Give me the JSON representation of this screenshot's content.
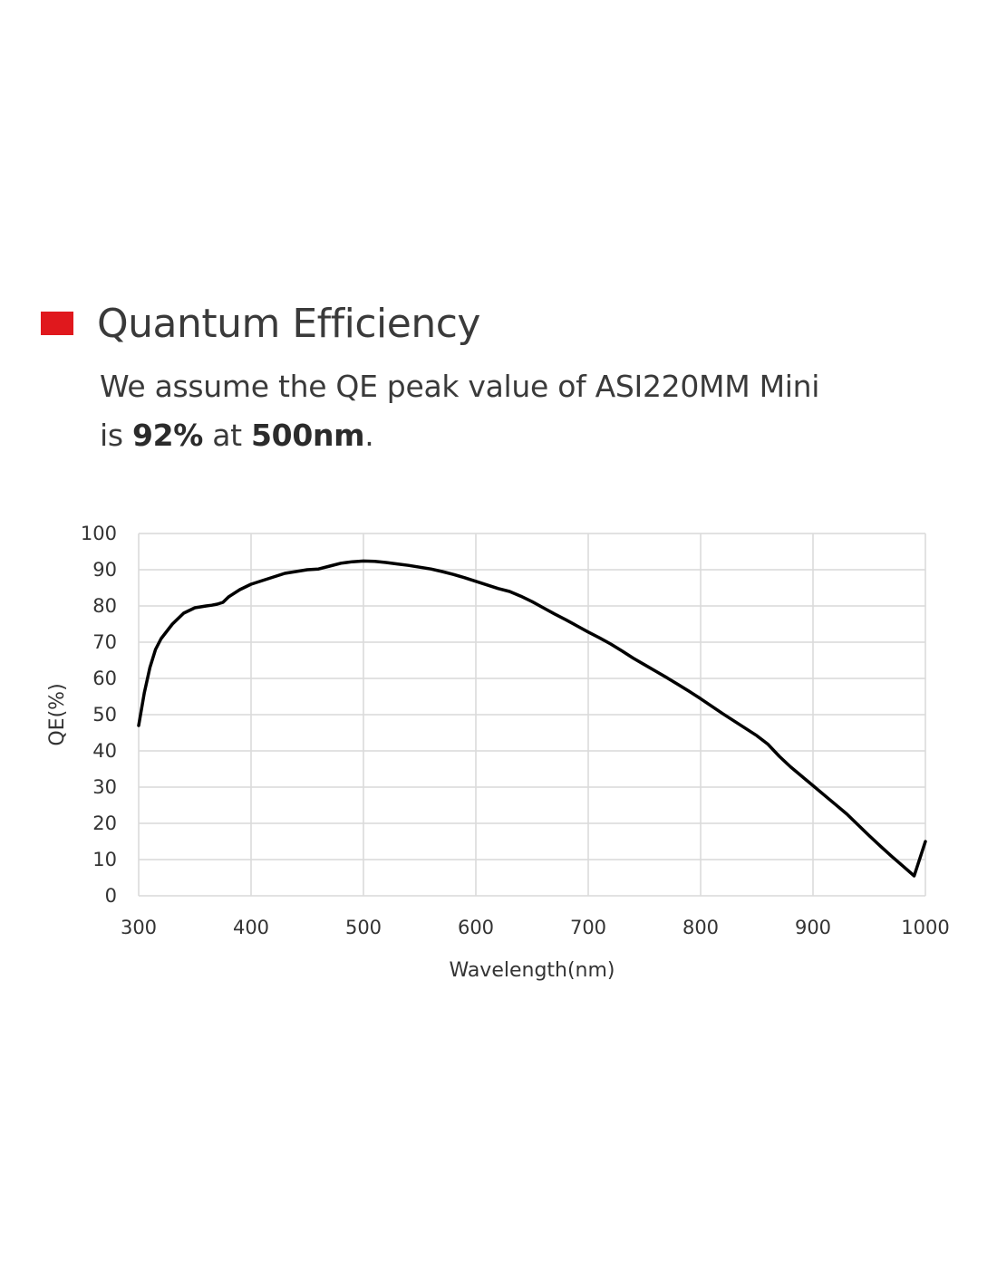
{
  "header": {
    "title": "Quantum Efficiency",
    "accent_color": "#e0181d"
  },
  "description": {
    "line1": "We assume the QE peak value of ASI220MM Mini",
    "line2_prefix": "is ",
    "peak_value": "92%",
    "line2_middle": " at ",
    "peak_wavelength": "500nm",
    "line2_suffix": "."
  },
  "chart_data": {
    "type": "line",
    "xlabel": "Wavelength(nm)",
    "ylabel": "QE(%)",
    "xlim": [
      300,
      1000
    ],
    "ylim": [
      0,
      100
    ],
    "xticks": [
      300,
      400,
      500,
      600,
      700,
      800,
      900,
      1000
    ],
    "yticks": [
      0,
      10,
      20,
      30,
      40,
      50,
      60,
      70,
      80,
      90,
      100
    ],
    "grid": true,
    "line_color": "#000000",
    "grid_color": "#d9d9d9",
    "series": [
      {
        "x": [
          300,
          305,
          310,
          315,
          320,
          330,
          340,
          350,
          360,
          365,
          370,
          375,
          380,
          390,
          400,
          410,
          420,
          430,
          440,
          450,
          460,
          470,
          480,
          490,
          500,
          510,
          520,
          530,
          540,
          550,
          560,
          570,
          580,
          590,
          600,
          610,
          620,
          630,
          640,
          650,
          660,
          670,
          680,
          690,
          700,
          710,
          720,
          730,
          740,
          750,
          760,
          770,
          780,
          790,
          800,
          810,
          820,
          830,
          840,
          850,
          860,
          870,
          880,
          890,
          900,
          910,
          920,
          930,
          940,
          950,
          960,
          970,
          980,
          990,
          1000
        ],
        "y": [
          47,
          56,
          63,
          68,
          71,
          75,
          78,
          79.5,
          80,
          80.2,
          80.5,
          81,
          82.5,
          84.5,
          86,
          87,
          88,
          89,
          89.5,
          90,
          90.2,
          91,
          91.8,
          92.2,
          92.4,
          92.3,
          92,
          91.6,
          91.2,
          90.7,
          90.2,
          89.5,
          88.7,
          87.8,
          86.8,
          85.8,
          84.8,
          84,
          82.7,
          81.2,
          79.5,
          77.8,
          76.2,
          74.5,
          72.8,
          71.2,
          69.5,
          67.6,
          65.6,
          63.8,
          62,
          60.2,
          58.3,
          56.4,
          54.4,
          52.3,
          50.2,
          48.2,
          46.2,
          44.2,
          41.8,
          38.5,
          35.6,
          33,
          30.4,
          27.8,
          25.2,
          22.6,
          19.6,
          16.6,
          13.7,
          10.9,
          8.2,
          5.5,
          15
        ]
      }
    ]
  }
}
